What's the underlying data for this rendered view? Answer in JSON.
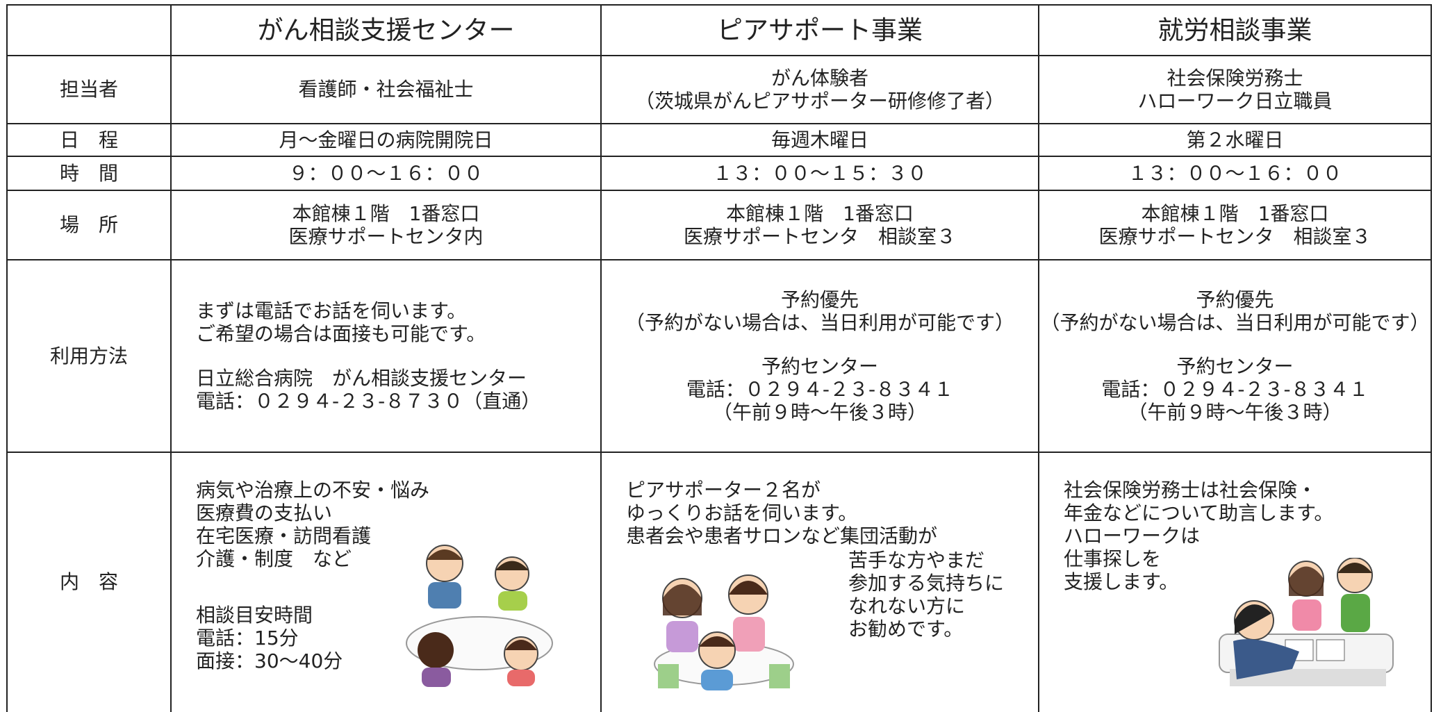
{
  "table": {
    "header": [
      "がん相談支援センター",
      "ピアサポート事業",
      "就労相談事業"
    ],
    "rows": [
      {
        "label": "担当者",
        "cells": [
          [
            [
              "看護師・社会福祉士"
            ]
          ],
          [
            [
              "がん体験者",
              "（茨城県がんピアサポーター研修修了者）"
            ]
          ],
          [
            [
              "社会保険労務士",
              "ハローワーク日立職員"
            ]
          ]
        ]
      },
      {
        "label": "日　程",
        "cells": [
          [
            [
              "月～金曜日の病院開院日"
            ]
          ],
          [
            [
              "毎週木曜日"
            ]
          ],
          [
            [
              "第２水曜日"
            ]
          ]
        ]
      },
      {
        "label": "時　間",
        "cells": [
          [
            [
              "９：００～１６：００"
            ]
          ],
          [
            [
              "１３：００～１５：３０"
            ]
          ],
          [
            [
              "１３：００～１６：００"
            ]
          ]
        ]
      },
      {
        "label": "場　所",
        "cells": [
          [
            [
              "本館棟１階　1番窓口",
              "医療サポートセンタ内"
            ]
          ],
          [
            [
              "本館棟１階　1番窓口",
              "医療サポートセンタ　相談室３"
            ]
          ],
          [
            [
              "本館棟１階　1番窓口",
              "医療サポートセンタ　相談室３"
            ]
          ]
        ]
      },
      {
        "label": "利用方法",
        "cells": [
          [
            [
              "まずは電話でお話を伺います。",
              "ご希望の場合は面接も可能です。"
            ],
            [
              "日立総合病院　がん相談支援センター",
              "電話：０２９４-２３-８７３０（直通）"
            ]
          ],
          [
            [
              "予約優先",
              "（予約がない場合は、当日利用が可能です）"
            ],
            [
              "予約センター",
              "電話：０２９４-２３-８３４１",
              "（午前９時～午後３時）"
            ]
          ],
          [
            [
              "予約優先",
              "（予約がない場合は、当日利用が可能です）"
            ],
            [
              "予約センター",
              "電話：０２９４-２３-８３４１",
              "（午前９時～午後３時）"
            ]
          ]
        ]
      },
      {
        "label": "内　容",
        "cells": [
          [
            [
              "病気や治療上の不安・悩み",
              "医療費の支払い",
              "在宅医療・訪問看護",
              "介護・制度　など"
            ],
            [
              "相談目安時間",
              "電話：15分",
              "面接：30～40分"
            ]
          ],
          [
            [
              "ピアサポーター２名が",
              "ゆっくりお話を伺います。",
              "患者会や患者サロンなど集団活動が"
            ],
            [
              "苦手な方やまだ",
              "参加する気持ちに",
              "なれない方に",
              "お勧めです。"
            ]
          ],
          [
            [
              "社会保険労務士は社会保険・",
              "年金などについて助言します。",
              "ハローワークは",
              "仕事探しを",
              "支援します。"
            ]
          ]
        ]
      }
    ]
  }
}
